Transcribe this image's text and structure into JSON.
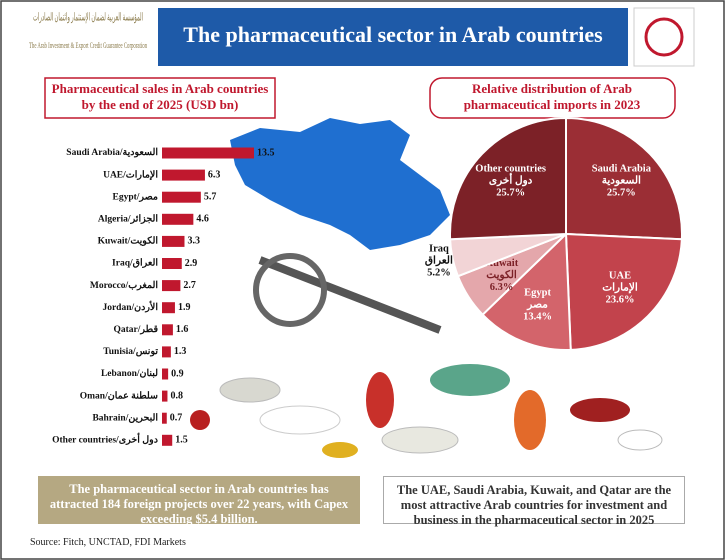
{
  "header": {
    "org_arabic": "المؤسسة العربية لضمان الإستثمار وائتمان الصادرات",
    "org_english": "The Arab Investment & Export Credit Guarantee Corporation",
    "title": "The pharmaceutical sector in Arab countries"
  },
  "chart_data": [
    {
      "type": "bar",
      "title": "Pharmaceutical  sales in Arab countries by the end of 2025 (USD bn)",
      "categories": [
        "Saudi Arabia/السعودية",
        "UAE/الإمارات",
        "Egypt/مصر",
        "Algeria/الجزائر",
        "Kuwait/الكويت",
        "Iraq/العراق",
        "Morocco/المغرب",
        "Jordan/الأردن",
        "Qatar/قطر",
        "Tunisia/تونس",
        "Lebanon/لبنان",
        "Oman/سلطنة عمان",
        "Bahrain/البحرين",
        "Other countries/دول أخرى"
      ],
      "values": [
        13.5,
        6.3,
        5.7,
        4.6,
        3.3,
        2.9,
        2.7,
        1.9,
        1.6,
        1.3,
        0.9,
        0.8,
        0.7,
        1.5
      ],
      "color": "#c0182e"
    },
    {
      "type": "pie",
      "title": "Relative distribution of Arab pharmaceutical imports in 2023",
      "categories": [
        "Saudi Arabia",
        "UAE",
        "Egypt",
        "Kuwait",
        "Iraq",
        "Other countries"
      ],
      "categories_arabic": [
        "السعودية",
        "الإمارات",
        "مصر",
        "الكويت",
        "العراق",
        "دول أخرى"
      ],
      "values": [
        25.7,
        23.6,
        13.4,
        6.3,
        5.2,
        25.7
      ],
      "value_labels": [
        "25.7%",
        "23.6%",
        "13.4%",
        "6.3%",
        "5.2%",
        "25.7%"
      ],
      "colors": [
        "#9b2e35",
        "#c2434c",
        "#d3646b",
        "#e4a7ab",
        "#f2d4d6",
        "#7c2127"
      ]
    }
  ],
  "notes": [
    "The pharmaceutical sector in Arab countries has attracted 184 foreign projects over 22 years, with Capex exceeding $5.4 billion.",
    "The UAE, Saudi Arabia, Kuwait, and Qatar are the most attractive Arab countries for investment and business in the pharmaceutical sector in 2025"
  ],
  "source": "Source: Fitch, UNCTAD, FDI Markets"
}
